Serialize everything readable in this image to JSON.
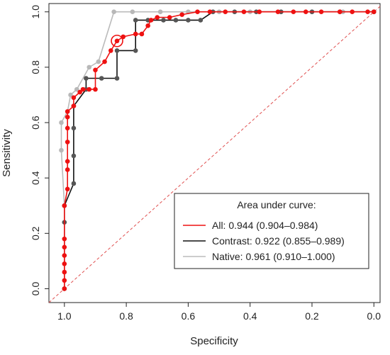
{
  "chart_data": {
    "type": "line",
    "xlabel": "Specificity",
    "ylabel": "Sensitivity",
    "xlim": [
      1.05,
      -0.02
    ],
    "ylim": [
      -0.05,
      1.03
    ],
    "x_reversed": true,
    "x_ticks": [
      1.0,
      0.8,
      0.6,
      0.4,
      0.2,
      0.0
    ],
    "x_tick_labels": [
      "1.0",
      "0.8",
      "0.6",
      "0.4",
      "0.2",
      "0.0"
    ],
    "y_ticks": [
      0.0,
      0.2,
      0.4,
      0.6,
      0.8,
      1.0
    ],
    "y_tick_labels": [
      "0.0",
      "0.2",
      "0.4",
      "0.6",
      "0.8",
      "1.0"
    ],
    "diagonal": {
      "from": [
        1.0,
        0.0
      ],
      "to": [
        0.0,
        1.0
      ],
      "color": "#e05050",
      "style": "dashed"
    },
    "legend": {
      "title": "Area under curve:",
      "position": "bottom-right"
    },
    "highlight_point": {
      "series": "All",
      "x": 0.83,
      "y": 0.895,
      "style": "open-circle"
    },
    "series": [
      {
        "name": "All",
        "label": "All: 0.944 (0.904–0.984)",
        "color": "#ee1111",
        "marker_color": "#ee1111",
        "points": [
          [
            1.0,
            0.0
          ],
          [
            1.0,
            0.03
          ],
          [
            1.0,
            0.06
          ],
          [
            1.0,
            0.09
          ],
          [
            1.0,
            0.12
          ],
          [
            1.0,
            0.15
          ],
          [
            1.0,
            0.18
          ],
          [
            1.0,
            0.3
          ],
          [
            0.99,
            0.36
          ],
          [
            0.99,
            0.43
          ],
          [
            0.99,
            0.46
          ],
          [
            0.99,
            0.53
          ],
          [
            0.99,
            0.58
          ],
          [
            0.99,
            0.62
          ],
          [
            0.99,
            0.64
          ],
          [
            0.97,
            0.66
          ],
          [
            0.97,
            0.69
          ],
          [
            0.95,
            0.71
          ],
          [
            0.94,
            0.72
          ],
          [
            0.92,
            0.72
          ],
          [
            0.9,
            0.72
          ],
          [
            0.9,
            0.79
          ],
          [
            0.87,
            0.82
          ],
          [
            0.85,
            0.86
          ],
          [
            0.83,
            0.895
          ],
          [
            0.81,
            0.91
          ],
          [
            0.77,
            0.92
          ],
          [
            0.75,
            0.92
          ],
          [
            0.73,
            0.95
          ],
          [
            0.72,
            0.97
          ],
          [
            0.7,
            0.98
          ],
          [
            0.66,
            0.98
          ],
          [
            0.62,
            0.99
          ],
          [
            0.57,
            1.0
          ],
          [
            0.53,
            1.0
          ],
          [
            0.48,
            1.0
          ],
          [
            0.42,
            1.0
          ],
          [
            0.37,
            1.0
          ],
          [
            0.31,
            1.0
          ],
          [
            0.26,
            1.0
          ],
          [
            0.22,
            1.0
          ],
          [
            0.17,
            1.0
          ],
          [
            0.11,
            1.0
          ],
          [
            0.07,
            1.0
          ],
          [
            0.02,
            1.0
          ],
          [
            0.0,
            1.0
          ]
        ]
      },
      {
        "name": "Contrast",
        "label": "Contrast: 0.922 (0.855–0.989)",
        "color": "#111111",
        "marker_color": "#555555",
        "points": [
          [
            1.0,
            0.0
          ],
          [
            1.0,
            0.24
          ],
          [
            1.0,
            0.3
          ],
          [
            0.97,
            0.38
          ],
          [
            0.97,
            0.48
          ],
          [
            0.97,
            0.58
          ],
          [
            0.97,
            0.66
          ],
          [
            0.93,
            0.72
          ],
          [
            0.93,
            0.76
          ],
          [
            0.88,
            0.76
          ],
          [
            0.83,
            0.76
          ],
          [
            0.83,
            0.86
          ],
          [
            0.77,
            0.86
          ],
          [
            0.77,
            0.97
          ],
          [
            0.73,
            0.97
          ],
          [
            0.68,
            0.97
          ],
          [
            0.64,
            0.97
          ],
          [
            0.6,
            0.97
          ],
          [
            0.56,
            0.97
          ],
          [
            0.52,
            1.0
          ],
          [
            0.45,
            1.0
          ],
          [
            0.38,
            1.0
          ],
          [
            0.3,
            1.0
          ],
          [
            0.2,
            1.0
          ],
          [
            0.11,
            1.0
          ],
          [
            0.0,
            1.0
          ]
        ]
      },
      {
        "name": "Native",
        "label": "Native: 0.961 (0.910–1.000)",
        "color": "#bbbbbb",
        "marker_color": "#b8b8b8",
        "points": [
          [
            1.0,
            0.0
          ],
          [
            1.0,
            0.3
          ],
          [
            1.01,
            0.5
          ],
          [
            1.01,
            0.6
          ],
          [
            0.99,
            0.64
          ],
          [
            0.98,
            0.7
          ],
          [
            0.96,
            0.72
          ],
          [
            0.92,
            0.8
          ],
          [
            0.89,
            0.82
          ],
          [
            0.84,
            1.0
          ],
          [
            0.78,
            1.0
          ],
          [
            0.69,
            1.0
          ],
          [
            0.6,
            1.0
          ],
          [
            0.5,
            1.0
          ],
          [
            0.4,
            1.0
          ],
          [
            0.3,
            1.0
          ],
          [
            0.2,
            1.0
          ],
          [
            0.1,
            1.0
          ],
          [
            0.0,
            1.0
          ]
        ]
      }
    ]
  }
}
